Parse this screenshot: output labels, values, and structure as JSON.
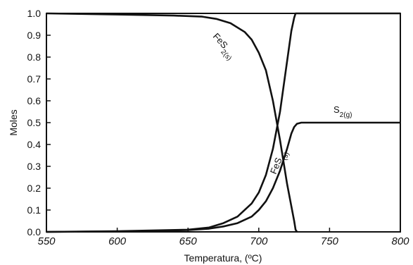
{
  "chart_data": {
    "type": "line",
    "xlabel": "Temperatura, (ºC)",
    "ylabel": "Moles",
    "xlim": [
      550,
      800
    ],
    "ylim": [
      0,
      1.0
    ],
    "x_ticks": [
      "550",
      "600",
      "650",
      "700",
      "750",
      "800"
    ],
    "y_ticks": [
      "0.0",
      "0.1",
      "0.2",
      "0.3",
      "0.4",
      "0.5",
      "0.6",
      "0.7",
      "0.8",
      "0.9",
      "1.0"
    ],
    "grid": false,
    "series": [
      {
        "name": "FeS2(s)",
        "label_main": "FeS",
        "label_sub": "2(s)",
        "x": [
          550,
          600,
          640,
          660,
          670,
          680,
          690,
          695,
          700,
          705,
          710,
          715,
          720,
          725,
          726,
          727
        ],
        "y": [
          1.0,
          0.995,
          0.99,
          0.985,
          0.975,
          0.955,
          0.915,
          0.88,
          0.82,
          0.74,
          0.6,
          0.42,
          0.22,
          0.05,
          0.01,
          0.0
        ]
      },
      {
        "name": "FeS(s)",
        "label_main": "FeS",
        "label_sub": "(s)",
        "x": [
          550,
          600,
          650,
          665,
          675,
          685,
          695,
          700,
          705,
          710,
          715,
          720,
          723,
          725,
          726,
          727,
          740,
          800
        ],
        "y": [
          0.0,
          0.003,
          0.01,
          0.02,
          0.04,
          0.07,
          0.13,
          0.18,
          0.26,
          0.38,
          0.55,
          0.78,
          0.92,
          0.98,
          1.0,
          1.0,
          1.0,
          1.0
        ]
      },
      {
        "name": "S2(g)",
        "label_main": "S",
        "label_sub": "2(g)",
        "x": [
          550,
          600,
          650,
          665,
          675,
          685,
          695,
          700,
          705,
          710,
          715,
          720,
          723,
          725,
          727,
          730,
          740,
          800
        ],
        "y": [
          0.0,
          0.002,
          0.008,
          0.015,
          0.025,
          0.04,
          0.07,
          0.1,
          0.14,
          0.2,
          0.28,
          0.38,
          0.45,
          0.48,
          0.495,
          0.5,
          0.5,
          0.5
        ]
      }
    ]
  }
}
